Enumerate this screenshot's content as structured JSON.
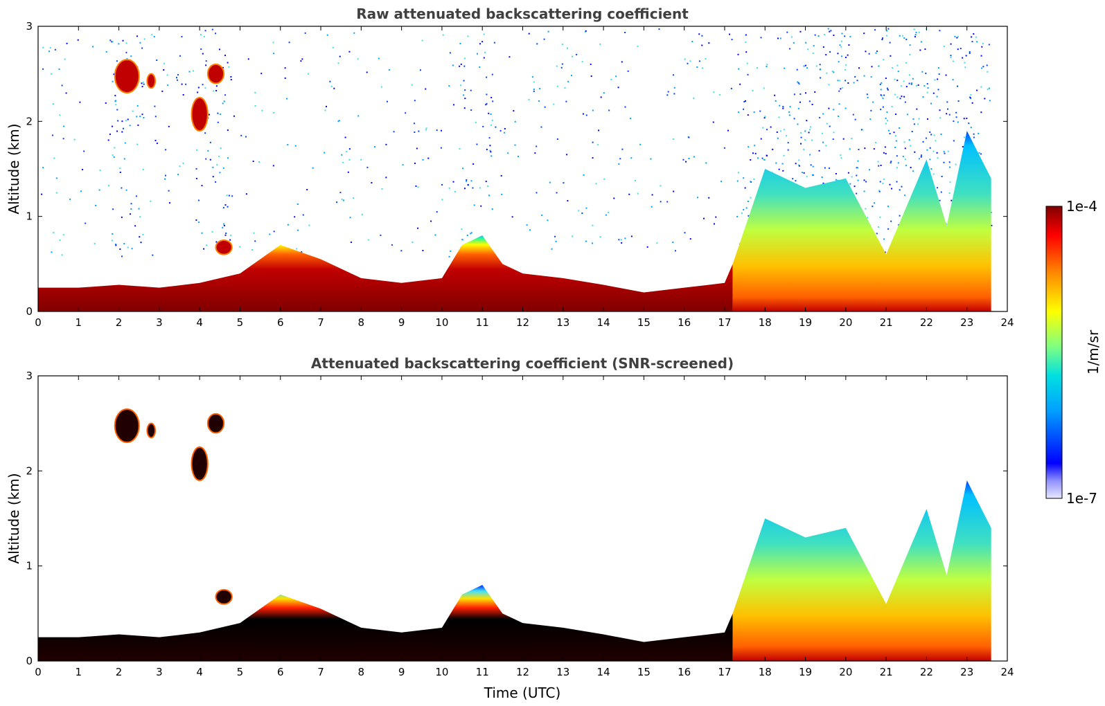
{
  "chart_data": [
    {
      "type": "heatmap",
      "title": "Raw attenuated backscattering coefficient",
      "xlabel": "",
      "ylabel": "Altitude (km)",
      "xlim": [
        0,
        24
      ],
      "ylim": [
        0,
        3
      ],
      "xticks": [
        "0",
        "1",
        "2",
        "3",
        "4",
        "5",
        "6",
        "7",
        "8",
        "9",
        "10",
        "11",
        "12",
        "13",
        "14",
        "15",
        "16",
        "17",
        "18",
        "19",
        "20",
        "21",
        "22",
        "23",
        "24"
      ],
      "yticks": [
        "0",
        "1",
        "2",
        "3"
      ],
      "boundary_layer_top_km": [
        [
          0,
          0.25
        ],
        [
          1,
          0.25
        ],
        [
          2,
          0.28
        ],
        [
          3,
          0.25
        ],
        [
          4,
          0.3
        ],
        [
          5,
          0.4
        ],
        [
          6,
          0.7
        ],
        [
          7,
          0.55
        ],
        [
          8,
          0.35
        ],
        [
          9,
          0.3
        ],
        [
          10,
          0.35
        ],
        [
          10.5,
          0.7
        ],
        [
          11,
          0.8
        ],
        [
          11.5,
          0.5
        ],
        [
          12,
          0.4
        ],
        [
          13,
          0.35
        ],
        [
          14,
          0.28
        ],
        [
          15,
          0.2
        ],
        [
          16,
          0.25
        ],
        [
          17,
          0.3
        ],
        [
          17.2,
          0.5
        ],
        [
          18,
          1.5
        ],
        [
          19,
          1.3
        ],
        [
          20,
          1.4
        ],
        [
          20.5,
          1.0
        ],
        [
          21,
          0.6
        ],
        [
          22,
          1.6
        ],
        [
          22.5,
          0.9
        ],
        [
          23,
          1.9
        ],
        [
          23.6,
          1.4
        ]
      ],
      "elevated_layers_km": [
        {
          "time": [
            1.9,
            2.5
          ],
          "alt": [
            2.3,
            2.65
          ]
        },
        {
          "time": [
            2.7,
            2.9
          ],
          "alt": [
            2.35,
            2.5
          ]
        },
        {
          "time": [
            3.8,
            4.2
          ],
          "alt": [
            1.9,
            2.25
          ]
        },
        {
          "time": [
            4.2,
            4.6
          ],
          "alt": [
            2.4,
            2.6
          ]
        },
        {
          "time": [
            4.4,
            4.8
          ],
          "alt": [
            0.6,
            0.75
          ]
        }
      ]
    },
    {
      "type": "heatmap",
      "title": "Attenuated backscattering coefficient (SNR-screened)",
      "xlabel": "Time (UTC)",
      "ylabel": "Altitude (km)",
      "xlim": [
        0,
        24
      ],
      "ylim": [
        0,
        3
      ],
      "xticks": [
        "0",
        "1",
        "2",
        "3",
        "4",
        "5",
        "6",
        "7",
        "8",
        "9",
        "10",
        "11",
        "12",
        "13",
        "14",
        "15",
        "16",
        "17",
        "18",
        "19",
        "20",
        "21",
        "22",
        "23",
        "24"
      ],
      "yticks": [
        "0",
        "1",
        "2",
        "3"
      ]
    }
  ],
  "colorbar": {
    "label": "1/m/sr",
    "max_label": "1e-4",
    "min_label": "1e-7",
    "colors": [
      "#e8e8ff",
      "#0000ff",
      "#00a0ff",
      "#00e0e0",
      "#80ff80",
      "#ffff00",
      "#ff8000",
      "#ff0000",
      "#800000"
    ]
  }
}
